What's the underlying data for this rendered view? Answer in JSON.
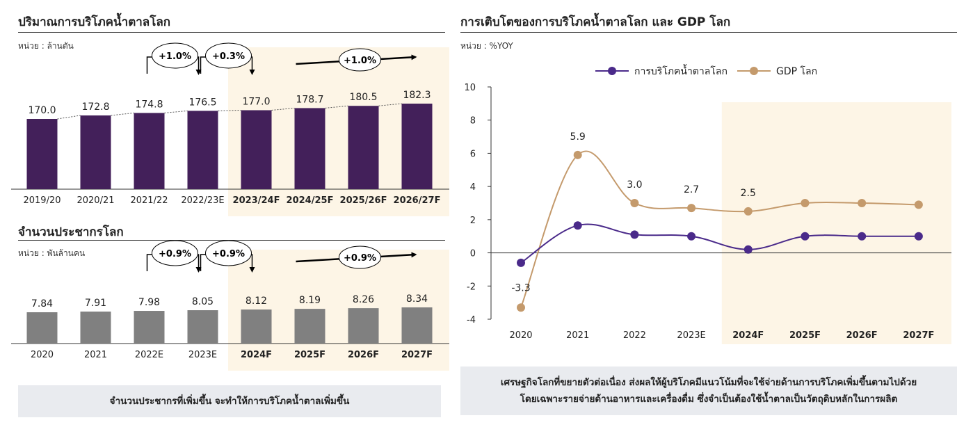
{
  "left": {
    "consumption": {
      "title": "ปริมาณการบริโภคน้ำตาลโลก",
      "unit": "หน่วย : ล้านตัน"
    },
    "population": {
      "title": "จำนวนประชากรโลก",
      "unit": "หน่วย : พันล้านคน"
    },
    "note": "จำนวนประชากรที่เพิ่มขึ้น จะทำให้การบริโภคน้ำตาลเพิ่มขึ้น"
  },
  "right": {
    "title": "การเติบโตของการบริโภคน้ำตาลโลก และ GDP โลก",
    "unit": "หน่วย : %YOY",
    "note_line1": "เศรษฐกิจโลกที่ขยายตัวต่อเนื่อง ส่งผลให้ผู้บริโภคมีแนวโน้มที่จะใช้จ่ายด้านการบริโภคเพิ่มขึ้นตามไปด้วย",
    "note_line2": "โดยเฉพาะรายจ่ายด้านอาหารและเครื่องดื่ม ซึ่งจำเป็นต้องใช้น้ำตาลเป็นวัตถุดิบหลักในการผลิต"
  },
  "colors": {
    "purple_bar": "#43205a",
    "gray_bar": "#808080",
    "forecast_shade": "#fdf5e6",
    "sugar_line": "#4a2a8a",
    "gdp_line": "#c49a6c",
    "note_bg": "#e9ebef"
  },
  "chart_data": [
    {
      "type": "bar",
      "title": "ปริมาณการบริโภคน้ำตาลโลก",
      "categories": [
        "2019/20",
        "2020/21",
        "2021/22",
        "2022/23E",
        "2023/24F",
        "2024/25F",
        "2025/26F",
        "2026/27F"
      ],
      "values": [
        170.0,
        172.8,
        174.8,
        176.5,
        177.0,
        178.7,
        180.5,
        182.3
      ],
      "value_labels": [
        "170.0",
        "172.8",
        "174.8",
        "176.5",
        "177.0",
        "178.7",
        "180.5",
        "182.3"
      ],
      "forecast_from_index": 4,
      "annotations": [
        "+1.0%",
        "+0.3%",
        "+1.0%"
      ]
    },
    {
      "type": "bar",
      "title": "จำนวนประชากรโลก",
      "categories": [
        "2020",
        "2021",
        "2022E",
        "2023E",
        "2024F",
        "2025F",
        "2026F",
        "2027F"
      ],
      "values": [
        7.84,
        7.91,
        7.98,
        8.05,
        8.12,
        8.19,
        8.26,
        8.34
      ],
      "value_labels": [
        "7.84",
        "7.91",
        "7.98",
        "8.05",
        "8.12",
        "8.19",
        "8.26",
        "8.34"
      ],
      "forecast_from_index": 4,
      "annotations": [
        "+0.9%",
        "+0.9%",
        "+0.9%"
      ]
    },
    {
      "type": "line",
      "title": "การเติบโตของการบริโภคน้ำตาลโลก และ GDP โลก",
      "categories": [
        "2020",
        "2021",
        "2022",
        "2023E",
        "2024F",
        "2025F",
        "2026F",
        "2027F"
      ],
      "ylim": [
        -4,
        10
      ],
      "yticks": [
        "-4",
        "-2",
        "0",
        "2",
        "4",
        "6",
        "8",
        "10"
      ],
      "legend_position": "top",
      "forecast_from_index": 4,
      "series": [
        {
          "name": "การบริโภคน้ำตาลโลก",
          "values": [
            -0.6,
            1.65,
            1.1,
            1.0,
            0.2,
            1.0,
            1.0,
            1.0
          ]
        },
        {
          "name": "GDP โลก",
          "values": [
            -3.3,
            5.9,
            3.0,
            2.7,
            2.5,
            3.0,
            3.0,
            2.9
          ],
          "labels": [
            "-3.3",
            "5.9",
            "3.0",
            "2.7",
            "2.5",
            "",
            "",
            ""
          ]
        }
      ]
    }
  ]
}
